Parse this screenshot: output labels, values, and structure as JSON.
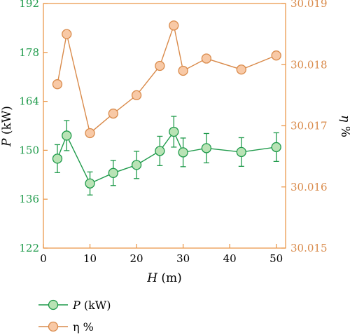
{
  "chart_data": {
    "type": "line",
    "xlabel_var": "H",
    "xlabel_unit": " (m)",
    "left_axis": {
      "var": "P",
      "unit": " (kW)",
      "min": 122,
      "max": 192,
      "ticks": [
        "122",
        "136",
        "150",
        "164",
        "178",
        "192"
      ],
      "color": "#1e9a4a"
    },
    "right_axis": {
      "var": "η",
      "unit": " %",
      "min": 30.015,
      "max": 30.019,
      "ticks": [
        "30.015",
        "30.016",
        "30.017",
        "30.018",
        "30.019"
      ],
      "color": "#d98a4a"
    },
    "x": {
      "min": 0,
      "max": 52,
      "ticks": [
        "0",
        "10",
        "20",
        "30",
        "40",
        "50"
      ]
    },
    "series": [
      {
        "name_var": "P",
        "name_unit": " (kW)",
        "axis": "left",
        "line_color": "#1e9a4a",
        "marker_fill": "#b9e3b5",
        "marker_stroke": "#1e9a4a",
        "x": [
          3,
          5,
          10,
          15,
          20,
          25,
          28,
          30,
          35,
          42.5,
          50
        ],
        "y": [
          147.6,
          154.2,
          140.5,
          143.5,
          145.8,
          149.8,
          155.3,
          149.4,
          150.6,
          149.5,
          150.9
        ],
        "err": [
          4.0,
          4.3,
          3.3,
          3.6,
          3.9,
          4.2,
          4.4,
          4.1,
          4.2,
          4.1,
          4.1
        ]
      },
      {
        "name": "η %",
        "axis": "right",
        "line_color": "#d98a4a",
        "marker_fill": "#f8c9a6",
        "marker_stroke": "#d98a4a",
        "x": [
          3,
          5,
          10,
          15,
          20,
          25,
          28,
          30,
          35,
          42.5,
          50
        ],
        "y": [
          30.01768,
          30.0185,
          30.01688,
          30.0172,
          30.0175,
          30.01798,
          30.01864,
          30.0179,
          30.0181,
          30.01792,
          30.01815
        ]
      }
    ]
  }
}
